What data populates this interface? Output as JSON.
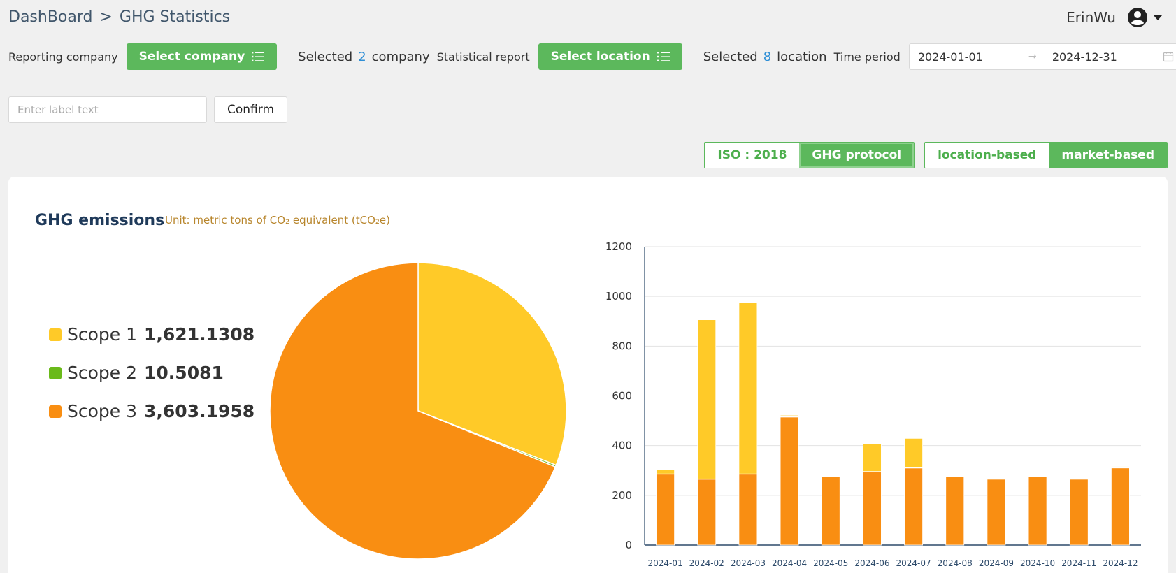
{
  "breadcrumb": {
    "root": "DashBoard",
    "separator": ">",
    "current": "GHG Statistics"
  },
  "user": {
    "name": "ErinWu",
    "avatar_icon": "user-circle-icon"
  },
  "filters": {
    "company_label": "Reporting company",
    "company_button": "Select company",
    "company_selected_prefix": "Selected",
    "company_selected_count": "2",
    "company_selected_suffix": "company",
    "report_label": "Statistical report",
    "location_button": "Select location",
    "location_selected_prefix": "Selected",
    "location_selected_count": "8",
    "location_selected_suffix": "location",
    "period_label": "Time period",
    "date_start": "2024-01-01",
    "date_sep": "→",
    "date_end": "2024-12-31"
  },
  "label_form": {
    "placeholder": "Enter label text",
    "confirm": "Confirm"
  },
  "standards": {
    "iso": "ISO : 2018",
    "ghg": "GHG protocol",
    "active": "ghg"
  },
  "methods": {
    "location": "location-based",
    "market": "market-based",
    "active": "market"
  },
  "card": {
    "title": "GHG emissions",
    "unit": "Unit: metric tons of CO₂ equivalent (tCO₂e)"
  },
  "colors": {
    "scope1": "#ffca28",
    "scope2": "#6aba1a",
    "scope3": "#f98e12",
    "accent": "#5cb85c"
  },
  "legend": [
    {
      "name": "Scope 1",
      "value": "1,621.1308"
    },
    {
      "name": "Scope 2",
      "value": "10.5081"
    },
    {
      "name": "Scope 3",
      "value": "3,603.1958"
    }
  ],
  "chart_data": [
    {
      "type": "pie",
      "labels": [
        "Scope 1",
        "Scope 2",
        "Scope 3"
      ],
      "values": [
        1621.1308,
        10.5081,
        3603.1958
      ],
      "legend_position": "left"
    },
    {
      "type": "bar",
      "stacked": true,
      "categories": [
        "2024-01",
        "2024-02",
        "2024-03",
        "2024-04",
        "2024-05",
        "2024-06",
        "2024-07",
        "2024-08",
        "2024-09",
        "2024-10",
        "2024-11",
        "2024-12"
      ],
      "series": [
        {
          "name": "Scope 3",
          "values": [
            285,
            265,
            285,
            515,
            275,
            295,
            310,
            275,
            265,
            275,
            265,
            310
          ]
        },
        {
          "name": "Scope 2",
          "values": [
            1,
            1,
            1,
            1,
            1,
            1,
            1,
            1,
            1,
            1,
            1,
            2
          ]
        },
        {
          "name": "Scope 1",
          "values": [
            18,
            640,
            688,
            6,
            0,
            112,
            118,
            0,
            0,
            0,
            0,
            4
          ]
        }
      ],
      "ylim": [
        0,
        1200
      ],
      "yticks": [
        0,
        200,
        400,
        600,
        800,
        1000,
        1200
      ],
      "grid": true
    }
  ]
}
